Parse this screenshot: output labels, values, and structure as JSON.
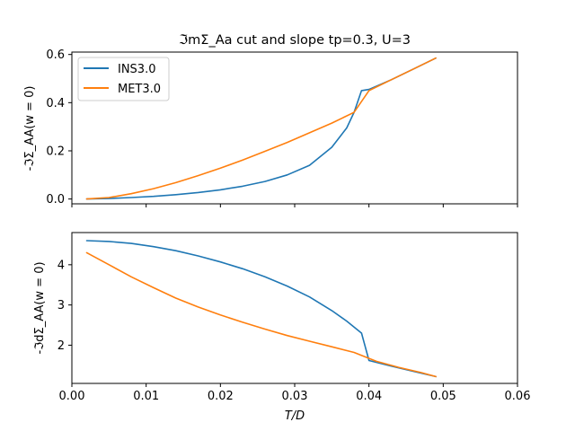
{
  "chart_data": [
    {
      "type": "line",
      "title": "ℑmΣ_Aa cut and slope tp=0.3, U=3",
      "ylabel": "-ℑΣ_AA(w = 0)",
      "xlim": [
        0.0,
        0.06
      ],
      "ylim": [
        -0.02,
        0.61
      ],
      "xticks": [
        "0.00",
        "0.01",
        "0.02",
        "0.03",
        "0.04",
        "0.05",
        "0.06"
      ],
      "yticks": [
        0.0,
        0.2,
        0.4,
        0.6
      ],
      "ytick_labels": [
        "0.0",
        "0.2",
        "0.4",
        "0.6"
      ],
      "legend_position": "top-left",
      "series": [
        {
          "name": "INS3.0",
          "color": "#1f77b4",
          "x": [
            0.002,
            0.005,
            0.008,
            0.011,
            0.014,
            0.017,
            0.02,
            0.023,
            0.026,
            0.029,
            0.032,
            0.035,
            0.037,
            0.038,
            0.039,
            0.04,
            0.043,
            0.046,
            0.049
          ],
          "y": [
            0.0,
            0.002,
            0.006,
            0.011,
            0.018,
            0.027,
            0.038,
            0.053,
            0.073,
            0.1,
            0.14,
            0.215,
            0.295,
            0.36,
            0.45,
            0.455,
            0.495,
            0.54,
            0.585
          ]
        },
        {
          "name": "MET3.0",
          "color": "#ff7f0e",
          "x": [
            0.002,
            0.005,
            0.008,
            0.011,
            0.014,
            0.017,
            0.02,
            0.023,
            0.026,
            0.029,
            0.032,
            0.035,
            0.038,
            0.04,
            0.043,
            0.046,
            0.049
          ],
          "y": [
            0.0,
            0.006,
            0.022,
            0.043,
            0.068,
            0.097,
            0.128,
            0.162,
            0.198,
            0.235,
            0.275,
            0.315,
            0.36,
            0.45,
            0.495,
            0.54,
            0.585
          ]
        }
      ]
    },
    {
      "type": "line",
      "xlabel": "T/D",
      "ylabel": "-ℑdΣ_AA(w = 0)",
      "xlim": [
        0.0,
        0.06
      ],
      "ylim": [
        1.05,
        4.8
      ],
      "xticks": [
        "0.00",
        "0.01",
        "0.02",
        "0.03",
        "0.04",
        "0.05",
        "0.06"
      ],
      "yticks": [
        2,
        3,
        4
      ],
      "ytick_labels": [
        "2",
        "3",
        "4"
      ],
      "series": [
        {
          "name": "INS3.0",
          "color": "#1f77b4",
          "x": [
            0.002,
            0.005,
            0.008,
            0.011,
            0.014,
            0.017,
            0.02,
            0.023,
            0.026,
            0.029,
            0.032,
            0.035,
            0.037,
            0.039,
            0.04,
            0.043,
            0.046,
            0.049
          ],
          "y": [
            4.6,
            4.58,
            4.53,
            4.45,
            4.35,
            4.22,
            4.07,
            3.9,
            3.7,
            3.47,
            3.2,
            2.86,
            2.6,
            2.3,
            1.62,
            1.48,
            1.35,
            1.22
          ],
          "end_clip": true
        },
        {
          "name": "MET3.0",
          "color": "#ff7f0e",
          "x": [
            0.002,
            0.005,
            0.008,
            0.011,
            0.014,
            0.017,
            0.02,
            0.023,
            0.026,
            0.029,
            0.032,
            0.035,
            0.038,
            0.041,
            0.044,
            0.047,
            0.049
          ],
          "y": [
            4.3,
            4.0,
            3.7,
            3.43,
            3.17,
            2.95,
            2.75,
            2.57,
            2.4,
            2.24,
            2.1,
            1.96,
            1.82,
            1.6,
            1.45,
            1.32,
            1.22
          ]
        }
      ]
    }
  ]
}
